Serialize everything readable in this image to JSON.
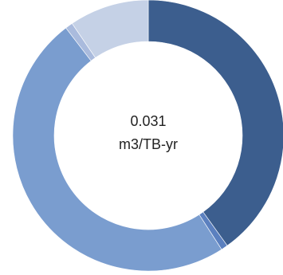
{
  "chart_data": {
    "type": "pie",
    "style": "donut",
    "center_value": "0.031",
    "center_unit": "m3/TB-yr",
    "slices": [
      {
        "value": 40.1,
        "color": "#3c5e8e"
      },
      {
        "value": 0.8,
        "color": "#5b80bf"
      },
      {
        "value": 48.7,
        "color": "#7a9dcf"
      },
      {
        "value": 0.9,
        "color": "#aabbdd"
      },
      {
        "value": 9.5,
        "color": "#c5d1e6"
      }
    ]
  }
}
